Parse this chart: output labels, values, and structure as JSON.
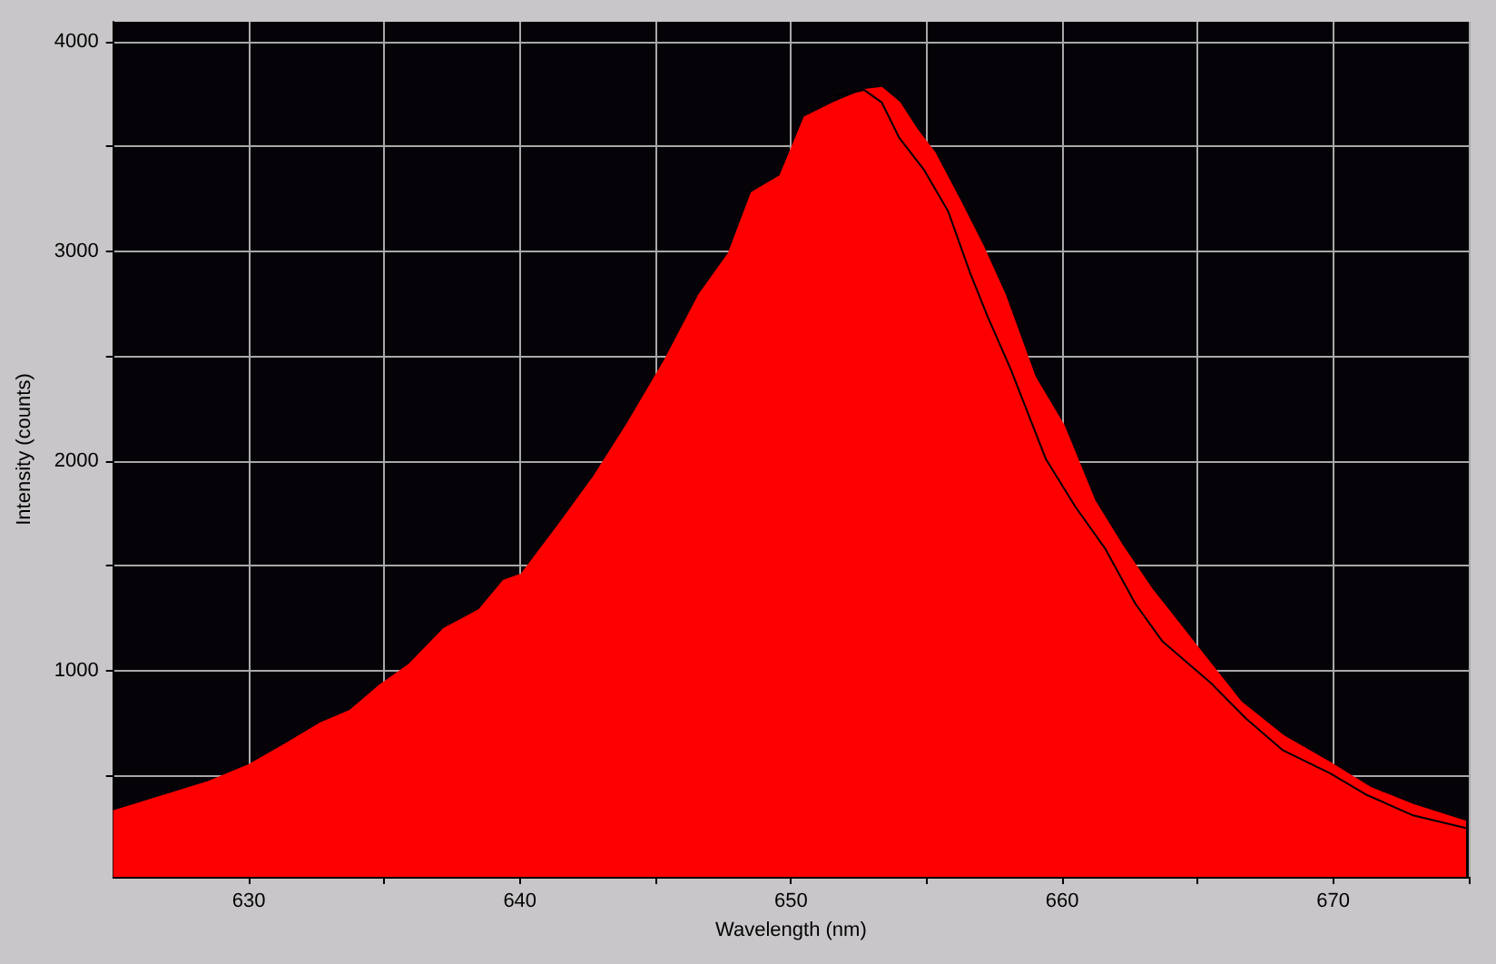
{
  "chart_data": {
    "type": "area",
    "xlabel": "Wavelength (nm)",
    "ylabel": "Intensity (counts)",
    "xlim": [
      625,
      675
    ],
    "ylim": [
      17,
      4095
    ],
    "xticks": [
      630,
      {
        "value": 635,
        "label": null
      },
      640,
      {
        "value": 645,
        "label": null
      },
      650,
      {
        "value": 655,
        "label": null
      },
      660,
      {
        "value": 665,
        "label": null
      },
      670,
      {
        "value": 675,
        "label": null
      }
    ],
    "yticks": [
      {
        "value": 500,
        "label": null
      },
      1000,
      {
        "value": 1500,
        "label": null
      },
      2000,
      {
        "value": 2500,
        "label": null
      },
      3000,
      {
        "value": 3500,
        "label": null
      },
      4000
    ],
    "grid": true,
    "marker": "none",
    "series": [
      {
        "color": "#ff0000",
        "x": [
          625,
          628.5,
          630,
          631.35,
          632.65,
          633.74,
          634.83,
          635.92,
          637.2,
          638.5,
          639.4,
          640.06,
          641.4,
          642.7,
          643.98,
          645.3,
          646.6,
          647.7,
          648.55,
          649.6,
          650.5,
          651.6,
          652.7,
          653.35,
          654.0,
          654.65,
          655.3,
          656.2,
          657.1,
          657.9,
          659.0,
          660.06,
          661.2,
          662.2,
          663.3,
          664.4,
          665.5,
          666.6,
          668.15,
          669.9,
          671.4,
          672.95,
          674.9
        ],
        "values": [
          330,
          470,
          550,
          650,
          750,
          810,
          930,
          1030,
          1200,
          1290,
          1430,
          1460,
          1690,
          1920,
          2180,
          2470,
          2790,
          2990,
          3280,
          3360,
          3640,
          3710,
          3770,
          3780,
          3710,
          3580,
          3470,
          3250,
          3020,
          2790,
          2400,
          2170,
          1810,
          1600,
          1390,
          1210,
          1030,
          850,
          690,
          560,
          440,
          360,
          280
        ]
      },
      {
        "type": "line",
        "color": "#000000",
        "line_style": "solid",
        "x": [
          651.6,
          652.7,
          653.35,
          654.0,
          654.9,
          655.8,
          656.6,
          657.25,
          658.1,
          659.4,
          660.5,
          661.6,
          662.7,
          663.7,
          665.5,
          666.8,
          668.15,
          669.9,
          671.2,
          672.95,
          674.9
        ],
        "values": [
          3740,
          3770,
          3710,
          3540,
          3390,
          3190,
          2900,
          2690,
          2440,
          2010,
          1780,
          1580,
          1320,
          1140,
          940,
          770,
          620,
          510,
          410,
          310,
          250
        ]
      }
    ]
  }
}
